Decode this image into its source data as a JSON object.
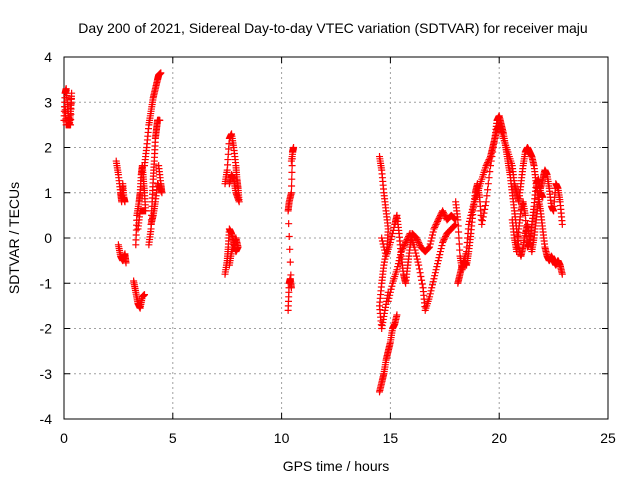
{
  "chart_data": {
    "type": "scatter",
    "title": "Day 200 of 2021, Sidereal Day-to-day VTEC variation (SDTVAR) for receiver maju",
    "xlabel": "GPS time / hours",
    "ylabel": "SDTVAR / TECUs",
    "xlim": [
      0,
      25
    ],
    "ylim": [
      -4,
      4
    ],
    "xticks": [
      0,
      5,
      10,
      15,
      20,
      25
    ],
    "yticks": [
      -4,
      -3,
      -2,
      -1,
      0,
      1,
      2,
      3,
      4
    ],
    "grid": true,
    "marker": "+",
    "series": [
      {
        "name": "SDTVAR",
        "color": "#ff0000",
        "segments": [
          [
            [
              0.0,
              2.6
            ],
            [
              0.05,
              3.2
            ],
            [
              0.1,
              3.3
            ],
            [
              0.15,
              3.0
            ],
            [
              0.2,
              2.7
            ],
            [
              0.25,
              2.5
            ],
            [
              0.3,
              2.8
            ],
            [
              0.35,
              3.2
            ],
            [
              0.3,
              2.5
            ],
            [
              0.1,
              2.5
            ],
            [
              0.05,
              2.9
            ]
          ],
          [
            [
              2.4,
              1.7
            ],
            [
              2.5,
              1.4
            ],
            [
              2.6,
              1.0
            ],
            [
              2.65,
              0.8
            ],
            [
              2.7,
              1.2
            ],
            [
              2.75,
              0.9
            ],
            [
              2.8,
              0.8
            ]
          ],
          [
            [
              2.5,
              -0.15
            ],
            [
              2.6,
              -0.4
            ],
            [
              2.7,
              -0.5
            ],
            [
              2.8,
              -0.35
            ],
            [
              2.85,
              -0.55
            ]
          ],
          [
            [
              3.2,
              -0.95
            ],
            [
              3.3,
              -1.2
            ],
            [
              3.4,
              -1.45
            ],
            [
              3.5,
              -1.55
            ],
            [
              3.6,
              -1.3
            ],
            [
              3.7,
              -1.25
            ]
          ],
          [
            [
              3.3,
              -0.15
            ],
            [
              3.35,
              0.5
            ],
            [
              3.45,
              0.8
            ],
            [
              3.5,
              1.0
            ],
            [
              3.55,
              1.4
            ],
            [
              3.6,
              1.6
            ],
            [
              3.65,
              1.3
            ],
            [
              3.7,
              1.0
            ],
            [
              3.75,
              0.6
            ],
            [
              3.5,
              0.6
            ],
            [
              3.4,
              0.2
            ]
          ],
          [
            [
              3.9,
              -0.15
            ],
            [
              4.0,
              0.2
            ],
            [
              4.05,
              0.8
            ],
            [
              4.1,
              1.3
            ],
            [
              4.15,
              1.7
            ],
            [
              4.2,
              2.2
            ],
            [
              4.25,
              2.4
            ],
            [
              4.3,
              2.6
            ],
            [
              4.35,
              2.6
            ],
            [
              4.4,
              2.6
            ]
          ],
          [
            [
              3.7,
              1.6
            ],
            [
              3.8,
              2.0
            ],
            [
              3.9,
              2.5
            ],
            [
              4.0,
              2.8
            ],
            [
              4.1,
              3.1
            ],
            [
              4.2,
              3.3
            ],
            [
              4.3,
              3.5
            ],
            [
              4.35,
              3.6
            ],
            [
              4.45,
              3.65
            ]
          ],
          [
            [
              4.35,
              1.6
            ],
            [
              4.45,
              1.2
            ],
            [
              4.5,
              1.0
            ],
            [
              4.3,
              1.2
            ],
            [
              4.2,
              0.8
            ],
            [
              4.1,
              0.5
            ],
            [
              4.0,
              0.3
            ]
          ],
          [
            [
              7.4,
              1.2
            ],
            [
              7.5,
              1.5
            ],
            [
              7.6,
              2.2
            ],
            [
              7.7,
              2.3
            ],
            [
              7.8,
              2.0
            ],
            [
              7.9,
              1.6
            ],
            [
              7.95,
              1.3
            ],
            [
              8.0,
              1.1
            ],
            [
              8.05,
              0.8
            ],
            [
              7.9,
              1.0
            ],
            [
              7.8,
              1.3
            ],
            [
              7.7,
              1.4
            ],
            [
              7.6,
              1.2
            ]
          ],
          [
            [
              7.4,
              -0.8
            ],
            [
              7.5,
              -0.5
            ],
            [
              7.55,
              -0.2
            ],
            [
              7.6,
              0.2
            ],
            [
              7.7,
              0.1
            ],
            [
              7.8,
              -0.1
            ],
            [
              7.9,
              -0.3
            ],
            [
              8.0,
              -0.2
            ],
            [
              7.9,
              0.0
            ],
            [
              7.7,
              -0.3
            ],
            [
              7.6,
              -0.6
            ]
          ],
          [
            [
              10.3,
              -1.6
            ],
            [
              10.35,
              -1.0
            ],
            [
              10.4,
              -0.9
            ],
            [
              10.45,
              -1.1
            ],
            [
              10.3,
              0.6
            ],
            [
              10.35,
              0.8
            ],
            [
              10.45,
              1.0
            ],
            [
              10.5,
              1.9
            ],
            [
              10.55,
              2.0
            ],
            [
              10.45,
              1.7
            ]
          ],
          [
            [
              14.5,
              -3.4
            ],
            [
              14.6,
              -3.2
            ],
            [
              14.7,
              -3.0
            ],
            [
              14.8,
              -2.7
            ],
            [
              14.9,
              -2.5
            ],
            [
              15.0,
              -2.3
            ],
            [
              15.1,
              -2.0
            ],
            [
              15.2,
              -1.9
            ],
            [
              15.3,
              -1.7
            ]
          ],
          [
            [
              14.5,
              1.8
            ],
            [
              14.6,
              1.5
            ],
            [
              14.7,
              1.0
            ],
            [
              14.8,
              0.6
            ],
            [
              14.9,
              0.2
            ],
            [
              14.85,
              -0.2
            ],
            [
              14.7,
              -0.6
            ],
            [
              14.6,
              -1.0
            ],
            [
              14.5,
              -1.5
            ],
            [
              14.6,
              -2.0
            ],
            [
              14.75,
              -1.6
            ],
            [
              14.9,
              -1.2
            ]
          ],
          [
            [
              14.6,
              0.0
            ],
            [
              14.8,
              -0.4
            ],
            [
              15.0,
              -0.1
            ],
            [
              15.2,
              0.3
            ],
            [
              15.3,
              0.5
            ],
            [
              15.4,
              0.1
            ],
            [
              15.5,
              -0.4
            ],
            [
              15.6,
              -0.8
            ],
            [
              15.7,
              -1.0
            ],
            [
              15.8,
              -0.6
            ],
            [
              15.9,
              -0.2
            ],
            [
              16.0,
              0.1
            ],
            [
              16.2,
              0.0
            ],
            [
              16.4,
              -0.2
            ],
            [
              16.6,
              -0.3
            ],
            [
              16.8,
              -0.2
            ],
            [
              17.0,
              0.2
            ],
            [
              17.2,
              0.4
            ],
            [
              17.4,
              0.6
            ],
            [
              17.6,
              0.4
            ],
            [
              17.8,
              0.5
            ],
            [
              18.0,
              0.4
            ]
          ],
          [
            [
              14.9,
              -1.4
            ],
            [
              15.1,
              -1.0
            ],
            [
              15.3,
              -0.7
            ],
            [
              15.5,
              -0.3
            ],
            [
              15.7,
              -0.1
            ],
            [
              15.9,
              0.1
            ],
            [
              16.1,
              -0.2
            ],
            [
              16.3,
              -0.6
            ],
            [
              16.5,
              -1.1
            ],
            [
              16.6,
              -1.6
            ],
            [
              16.8,
              -1.3
            ],
            [
              17.0,
              -0.9
            ],
            [
              17.2,
              -0.5
            ],
            [
              17.4,
              -0.1
            ],
            [
              17.6,
              0.1
            ],
            [
              17.8,
              0.2
            ],
            [
              18.0,
              0.3
            ]
          ],
          [
            [
              18.0,
              0.8
            ],
            [
              18.1,
              0.4
            ],
            [
              18.2,
              -0.4
            ],
            [
              18.3,
              -0.7
            ],
            [
              18.4,
              -0.5
            ],
            [
              18.5,
              -0.6
            ],
            [
              18.6,
              -0.3
            ],
            [
              18.7,
              0.1
            ],
            [
              18.8,
              0.6
            ],
            [
              18.9,
              1.0
            ],
            [
              19.0,
              1.2
            ],
            [
              19.1,
              0.9
            ],
            [
              19.2,
              0.3
            ],
            [
              19.4,
              0.8
            ],
            [
              19.6,
              1.6
            ],
            [
              19.8,
              2.2
            ],
            [
              19.9,
              2.6
            ],
            [
              20.0,
              2.7
            ],
            [
              20.1,
              2.5
            ],
            [
              20.2,
              2.3
            ],
            [
              20.3,
              2.0
            ],
            [
              20.4,
              1.7
            ],
            [
              20.5,
              1.4
            ],
            [
              20.6,
              1.0
            ],
            [
              20.7,
              0.6
            ],
            [
              20.8,
              0.2
            ],
            [
              20.9,
              -0.2
            ],
            [
              21.0,
              -0.4
            ],
            [
              21.1,
              -0.2
            ],
            [
              21.2,
              0.1
            ],
            [
              21.3,
              0.3
            ],
            [
              21.4,
              0.0
            ],
            [
              21.5,
              -0.3
            ],
            [
              21.6,
              0.0
            ],
            [
              21.7,
              0.4
            ],
            [
              21.8,
              0.8
            ],
            [
              21.9,
              1.1
            ],
            [
              22.0,
              1.3
            ],
            [
              22.1,
              1.5
            ],
            [
              22.2,
              1.4
            ],
            [
              22.3,
              1.1
            ],
            [
              22.4,
              0.7
            ],
            [
              22.5,
              0.6
            ],
            [
              22.6,
              1.2
            ],
            [
              22.7,
              1.1
            ],
            [
              22.8,
              0.8
            ],
            [
              22.9,
              0.3
            ]
          ],
          [
            [
              18.1,
              -1.0
            ],
            [
              18.2,
              -0.8
            ],
            [
              18.3,
              -0.6
            ],
            [
              18.5,
              -0.3
            ],
            [
              18.6,
              0.3
            ],
            [
              18.8,
              0.7
            ],
            [
              19.0,
              1.0
            ],
            [
              19.2,
              1.3
            ],
            [
              19.4,
              1.6
            ],
            [
              19.6,
              1.8
            ],
            [
              19.7,
              2.0
            ],
            [
              19.8,
              2.2
            ],
            [
              19.9,
              2.4
            ],
            [
              20.0,
              2.5
            ],
            [
              20.2,
              2.2
            ],
            [
              20.4,
              1.9
            ],
            [
              20.6,
              1.6
            ],
            [
              20.7,
              1.2
            ],
            [
              20.8,
              1.0
            ],
            [
              20.9,
              0.8
            ],
            [
              21.0,
              1.2
            ],
            [
              21.1,
              1.6
            ],
            [
              21.2,
              1.9
            ],
            [
              21.3,
              2.0
            ],
            [
              21.4,
              1.9
            ],
            [
              21.5,
              1.8
            ],
            [
              21.6,
              1.6
            ],
            [
              21.7,
              1.2
            ],
            [
              21.8,
              0.9
            ],
            [
              21.9,
              0.6
            ],
            [
              22.0,
              0.2
            ],
            [
              22.1,
              -0.2
            ],
            [
              22.2,
              -0.4
            ],
            [
              22.3,
              -0.5
            ],
            [
              22.4,
              -0.4
            ],
            [
              22.5,
              -0.5
            ],
            [
              22.6,
              -0.6
            ],
            [
              22.7,
              -0.5
            ],
            [
              22.8,
              -0.6
            ],
            [
              22.9,
              -0.8
            ]
          ],
          [
            [
              20.6,
              0.4
            ],
            [
              20.7,
              0.0
            ],
            [
              20.8,
              -0.3
            ],
            [
              20.9,
              0.2
            ],
            [
              21.0,
              0.6
            ],
            [
              21.1,
              0.8
            ],
            [
              21.2,
              0.5
            ],
            [
              21.3,
              -0.2
            ],
            [
              21.4,
              -0.1
            ],
            [
              21.5,
              0.3
            ],
            [
              21.6,
              0.7
            ],
            [
              21.7,
              1.2
            ],
            [
              21.8,
              1.3
            ],
            [
              21.9,
              1.0
            ],
            [
              22.0,
              0.9
            ]
          ]
        ]
      }
    ]
  }
}
